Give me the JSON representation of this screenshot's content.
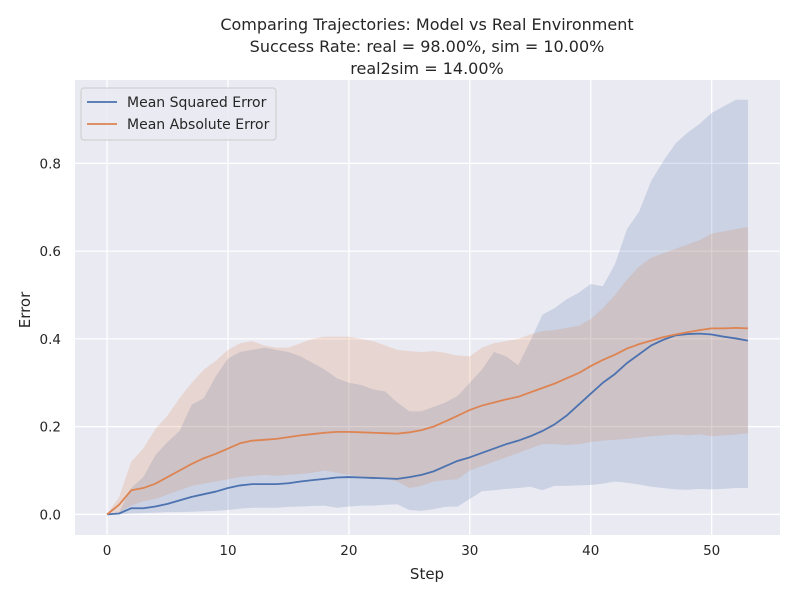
{
  "chart_data": {
    "type": "line",
    "title_lines": [
      "Comparing Trajectories: Model vs Real Environment",
      "Success Rate: real = 98.00%, sim = 10.00%",
      "real2sim = 14.00%"
    ],
    "xlabel": "Step",
    "ylabel": "Error",
    "xlim": [
      -2.65,
      55.65
    ],
    "ylim": [
      -0.047,
      0.99
    ],
    "xticks": [
      0,
      10,
      20,
      30,
      40,
      50
    ],
    "yticks": [
      0.0,
      0.2,
      0.4,
      0.6,
      0.8
    ],
    "ytick_labels": [
      "0.0",
      "0.2",
      "0.4",
      "0.6",
      "0.8"
    ],
    "grid": true,
    "legend_position": "top-left",
    "background": "#eaeaf2",
    "x": [
      0,
      1,
      2,
      3,
      4,
      5,
      6,
      7,
      8,
      9,
      10,
      11,
      12,
      13,
      14,
      15,
      16,
      17,
      18,
      19,
      20,
      21,
      22,
      23,
      24,
      25,
      26,
      27,
      28,
      29,
      30,
      31,
      32,
      33,
      34,
      35,
      36,
      37,
      38,
      39,
      40,
      41,
      42,
      43,
      44,
      45,
      46,
      47,
      48,
      49,
      50,
      51,
      52,
      53
    ],
    "series": [
      {
        "name": "Mean Squared Error",
        "color": "#4c72b0",
        "band_color": "#4c72b0",
        "values": [
          0.0,
          0.002,
          0.014,
          0.014,
          0.018,
          0.024,
          0.032,
          0.04,
          0.046,
          0.052,
          0.06,
          0.066,
          0.069,
          0.069,
          0.069,
          0.071,
          0.075,
          0.078,
          0.081,
          0.084,
          0.085,
          0.084,
          0.083,
          0.082,
          0.081,
          0.085,
          0.09,
          0.098,
          0.11,
          0.122,
          0.13,
          0.14,
          0.15,
          0.16,
          0.168,
          0.178,
          0.19,
          0.205,
          0.225,
          0.25,
          0.275,
          0.3,
          0.32,
          0.345,
          0.365,
          0.385,
          0.398,
          0.408,
          0.411,
          0.412,
          0.41,
          0.405,
          0.401,
          0.396
        ],
        "lower": [
          0.0,
          0.0,
          0.002,
          0.003,
          0.004,
          0.005,
          0.005,
          0.006,
          0.007,
          0.008,
          0.01,
          0.013,
          0.015,
          0.015,
          0.015,
          0.017,
          0.018,
          0.019,
          0.02,
          0.015,
          0.018,
          0.02,
          0.02,
          0.022,
          0.023,
          0.01,
          0.008,
          0.012,
          0.017,
          0.018,
          0.035,
          0.053,
          0.055,
          0.058,
          0.06,
          0.063,
          0.055,
          0.065,
          0.065,
          0.066,
          0.067,
          0.07,
          0.075,
          0.072,
          0.068,
          0.063,
          0.06,
          0.057,
          0.056,
          0.058,
          0.057,
          0.058,
          0.06,
          0.06
        ],
        "upper": [
          0.0,
          0.005,
          0.06,
          0.085,
          0.135,
          0.165,
          0.19,
          0.25,
          0.265,
          0.315,
          0.355,
          0.37,
          0.375,
          0.38,
          0.375,
          0.37,
          0.36,
          0.345,
          0.33,
          0.31,
          0.3,
          0.295,
          0.285,
          0.28,
          0.255,
          0.235,
          0.235,
          0.245,
          0.255,
          0.27,
          0.3,
          0.33,
          0.37,
          0.36,
          0.34,
          0.395,
          0.455,
          0.47,
          0.49,
          0.505,
          0.525,
          0.52,
          0.57,
          0.65,
          0.69,
          0.76,
          0.805,
          0.845,
          0.87,
          0.89,
          0.915,
          0.93,
          0.945,
          0.945
        ]
      },
      {
        "name": "Mean Absolute Error",
        "color": "#dd8452",
        "band_color": "#dd8452",
        "values": [
          0.0,
          0.022,
          0.055,
          0.06,
          0.07,
          0.085,
          0.1,
          0.115,
          0.128,
          0.138,
          0.15,
          0.162,
          0.168,
          0.17,
          0.172,
          0.176,
          0.18,
          0.183,
          0.186,
          0.188,
          0.188,
          0.187,
          0.186,
          0.185,
          0.184,
          0.187,
          0.192,
          0.2,
          0.212,
          0.225,
          0.238,
          0.248,
          0.255,
          0.262,
          0.268,
          0.278,
          0.288,
          0.298,
          0.31,
          0.322,
          0.338,
          0.352,
          0.364,
          0.378,
          0.388,
          0.396,
          0.404,
          0.41,
          0.415,
          0.42,
          0.424,
          0.424,
          0.425,
          0.424
        ],
        "lower": [
          0.0,
          0.005,
          0.02,
          0.03,
          0.035,
          0.045,
          0.055,
          0.065,
          0.07,
          0.075,
          0.08,
          0.085,
          0.088,
          0.09,
          0.088,
          0.09,
          0.092,
          0.095,
          0.1,
          0.095,
          0.09,
          0.085,
          0.08,
          0.082,
          0.075,
          0.06,
          0.065,
          0.075,
          0.078,
          0.08,
          0.1,
          0.11,
          0.12,
          0.13,
          0.14,
          0.15,
          0.16,
          0.16,
          0.158,
          0.16,
          0.165,
          0.168,
          0.17,
          0.172,
          0.175,
          0.178,
          0.18,
          0.182,
          0.18,
          0.182,
          0.178,
          0.18,
          0.182,
          0.185
        ],
        "upper": [
          0.0,
          0.04,
          0.12,
          0.15,
          0.195,
          0.225,
          0.265,
          0.3,
          0.33,
          0.35,
          0.375,
          0.39,
          0.395,
          0.385,
          0.38,
          0.38,
          0.39,
          0.4,
          0.405,
          0.405,
          0.405,
          0.4,
          0.395,
          0.385,
          0.375,
          0.372,
          0.37,
          0.372,
          0.368,
          0.362,
          0.36,
          0.38,
          0.39,
          0.395,
          0.4,
          0.41,
          0.418,
          0.42,
          0.425,
          0.43,
          0.445,
          0.47,
          0.5,
          0.535,
          0.565,
          0.585,
          0.595,
          0.605,
          0.615,
          0.625,
          0.64,
          0.645,
          0.65,
          0.655
        ]
      }
    ]
  }
}
